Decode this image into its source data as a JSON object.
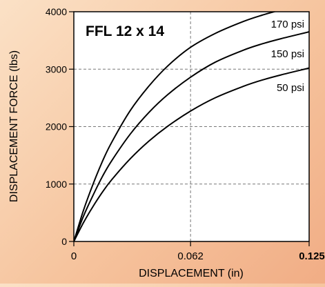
{
  "chart_data": {
    "type": "line",
    "title": "FFL 12 x 14",
    "xlabel": "DISPLACEMENT (in)",
    "ylabel": "DISPLACEMENT FORCE (lbs)",
    "xlim": [
      0,
      0.125
    ],
    "ylim": [
      0,
      4000
    ],
    "x_ticks": [
      {
        "value": 0,
        "label": "0"
      },
      {
        "value": 0.062,
        "label": "0.062"
      },
      {
        "value": 0.125,
        "label": "0.125"
      }
    ],
    "y_ticks": [
      {
        "value": 0,
        "label": "0"
      },
      {
        "value": 1000,
        "label": "1000"
      },
      {
        "value": 2000,
        "label": "2000"
      },
      {
        "value": 3000,
        "label": "3000"
      },
      {
        "value": 4000,
        "label": "4000"
      }
    ],
    "grid": {
      "x": [
        0.062
      ],
      "y": [
        1000,
        2000,
        3000
      ],
      "style": "dashed"
    },
    "series": [
      {
        "name": "170 psi",
        "x": [
          0,
          0.005,
          0.01,
          0.015,
          0.02,
          0.03,
          0.04,
          0.05,
          0.062,
          0.075,
          0.09,
          0.1,
          0.11,
          0.125
        ],
        "y": [
          0,
          530,
          980,
          1380,
          1720,
          2280,
          2710,
          3060,
          3380,
          3620,
          3830,
          3940,
          4030,
          4140
        ]
      },
      {
        "name": "150 psi",
        "x": [
          0,
          0.005,
          0.01,
          0.015,
          0.02,
          0.03,
          0.04,
          0.05,
          0.062,
          0.075,
          0.09,
          0.1,
          0.11,
          0.125
        ],
        "y": [
          0,
          430,
          790,
          1120,
          1400,
          1870,
          2250,
          2560,
          2860,
          3120,
          3330,
          3440,
          3530,
          3650
        ]
      },
      {
        "name": "50 psi",
        "x": [
          0,
          0.005,
          0.01,
          0.015,
          0.02,
          0.03,
          0.04,
          0.05,
          0.062,
          0.075,
          0.09,
          0.1,
          0.11,
          0.125
        ],
        "y": [
          0,
          320,
          600,
          850,
          1070,
          1440,
          1750,
          2010,
          2270,
          2500,
          2700,
          2810,
          2900,
          3020
        ]
      }
    ]
  }
}
